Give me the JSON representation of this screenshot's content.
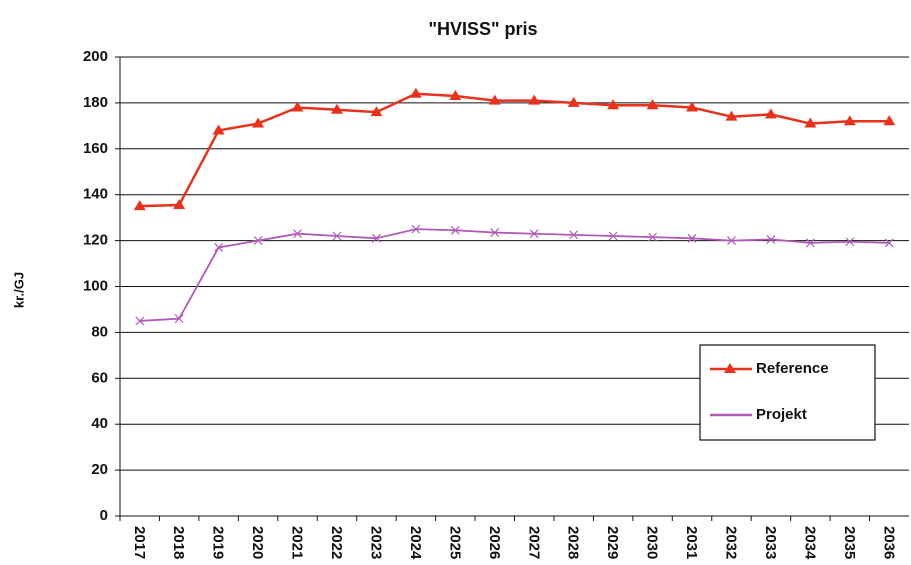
{
  "chart_data": {
    "type": "line",
    "title": "\"HVISS\" pris",
    "y_label": "kr./GJ",
    "categories": [
      "2017",
      "2018",
      "2019",
      "2020",
      "2021",
      "2022",
      "2023",
      "2024",
      "2025",
      "2026",
      "2027",
      "2028",
      "2029",
      "2030",
      "2031",
      "2032",
      "2033",
      "2034",
      "2035",
      "2036"
    ],
    "series": [
      {
        "name": "Reference",
        "color": "#e8321e",
        "marker": "triangle",
        "values": [
          135,
          135.5,
          168,
          171,
          178,
          177,
          176,
          184,
          183,
          181,
          181,
          180,
          179,
          179,
          178,
          174,
          175,
          171,
          172,
          172
        ]
      },
      {
        "name": "Projekt",
        "color": "#b05ab8",
        "marker": "x",
        "values": [
          85,
          86,
          117,
          120,
          123,
          122,
          121,
          125,
          124.5,
          123.5,
          123,
          122.5,
          122,
          121.5,
          121,
          120,
          120.5,
          119,
          119.5,
          119
        ]
      }
    ],
    "ylim": [
      0,
      200
    ],
    "yticks": [
      0,
      20,
      40,
      60,
      80,
      100,
      120,
      140,
      160,
      180,
      200
    ],
    "grid": true,
    "legend": "right"
  }
}
